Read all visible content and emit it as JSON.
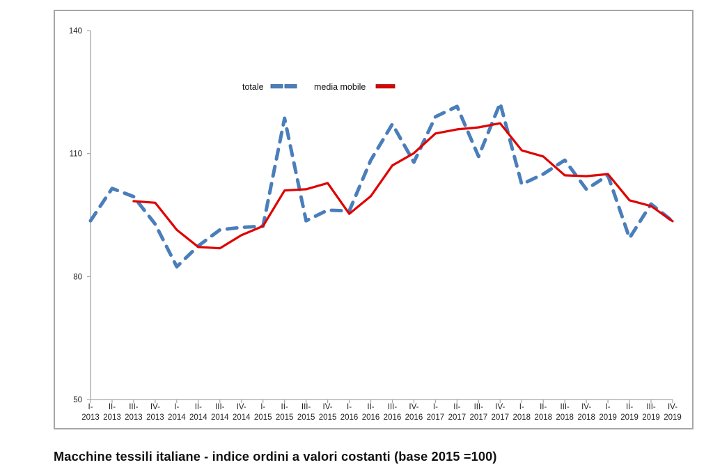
{
  "chart_data": {
    "type": "line",
    "title": "",
    "caption": "Macchine tessili italiane - indice ordini a valori costanti (base 2015 =100)",
    "xlabel": "",
    "ylabel": "",
    "ylim": [
      50,
      140
    ],
    "yticks": [
      50,
      80,
      110,
      140
    ],
    "grid": false,
    "legend_position": "top-center",
    "categories": [
      [
        "I-",
        "2013"
      ],
      [
        "II-",
        "2013"
      ],
      [
        "III-",
        "2013"
      ],
      [
        "IV-",
        "2013"
      ],
      [
        "I-",
        "2014"
      ],
      [
        "II-",
        "2014"
      ],
      [
        "III-",
        "2014"
      ],
      [
        "IV-",
        "2014"
      ],
      [
        "I-",
        "2015"
      ],
      [
        "II-",
        "2015"
      ],
      [
        "III-",
        "2015"
      ],
      [
        "IV-",
        "2015"
      ],
      [
        "I-",
        "2016"
      ],
      [
        "II-",
        "2016"
      ],
      [
        "III-",
        "2016"
      ],
      [
        "IV-",
        "2016"
      ],
      [
        "I-",
        "2017"
      ],
      [
        "II-",
        "2017"
      ],
      [
        "III-",
        "2017"
      ],
      [
        "IV-",
        "2017"
      ],
      [
        "I-",
        "2018"
      ],
      [
        "II-",
        "2018"
      ],
      [
        "III-",
        "2018"
      ],
      [
        "IV-",
        "2018"
      ],
      [
        "I-",
        "2019"
      ],
      [
        "II-",
        "2019"
      ],
      [
        "III-",
        "2019"
      ],
      [
        "IV-",
        "2019"
      ]
    ],
    "series": [
      {
        "name": "totale",
        "style": "dashed",
        "color": "#4a7ebb",
        "values": [
          93.6,
          101.5,
          99.5,
          92.8,
          82.4,
          87.5,
          91.4,
          92.0,
          92.3,
          118.6,
          93.6,
          96.2,
          96.0,
          108.4,
          117.2,
          107.9,
          119.0,
          121.5,
          109.3,
          122.3,
          102.5,
          105.0,
          108.4,
          101.3,
          104.7,
          89.4,
          97.7,
          93.5
        ]
      },
      {
        "name": "media mobile",
        "style": "solid",
        "color": "#e00000",
        "values": [
          null,
          null,
          98.4,
          98.0,
          91.4,
          87.2,
          86.9,
          90.1,
          92.3,
          101.0,
          101.3,
          102.8,
          95.3,
          99.6,
          107.1,
          110.1,
          114.9,
          115.9,
          116.4,
          117.4,
          110.8,
          109.3,
          104.7,
          104.5,
          105.0,
          98.6,
          97.2,
          93.5
        ]
      }
    ]
  },
  "colors": {
    "axis": "#a6a6a6",
    "frame": "#a6a6a6"
  }
}
